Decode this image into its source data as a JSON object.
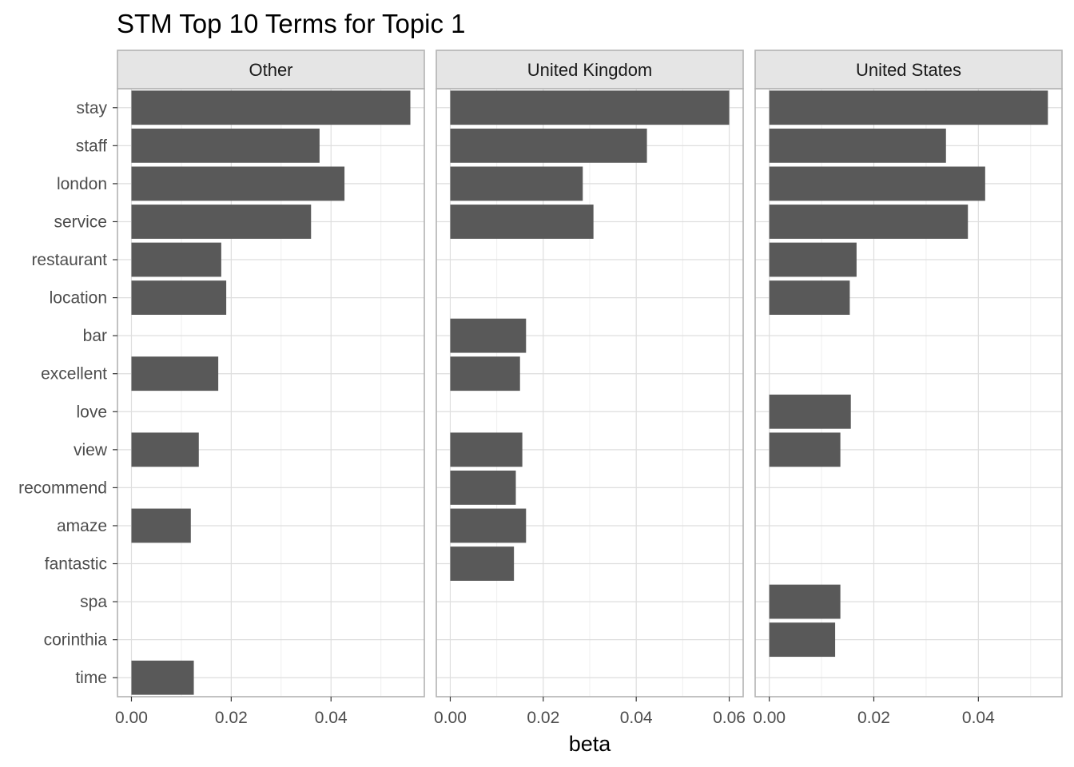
{
  "chart_data": {
    "type": "bar",
    "orientation": "horizontal",
    "title": "STM Top 10 Terms for Topic 1",
    "xlabel": "beta",
    "ylabel": "",
    "categories": [
      "stay",
      "staff",
      "london",
      "service",
      "restaurant",
      "location",
      "bar",
      "excellent",
      "love",
      "view",
      "recommend",
      "amaze",
      "fantastic",
      "spa",
      "corinthia",
      "time"
    ],
    "xlim": [
      -0.0026,
      0.0625
    ],
    "grid": true,
    "free_x_scales": true,
    "panels": [
      {
        "name": "Other",
        "xlim": [
          -0.0028,
          0.0587
        ],
        "ticks": [
          0.0,
          0.02,
          0.04
        ],
        "tick_labels": [
          "0.00",
          "0.02",
          "0.04"
        ],
        "values": {
          "stay": 0.0559,
          "staff": 0.0377,
          "london": 0.0427,
          "service": 0.036,
          "restaurant": 0.018,
          "location": 0.019,
          "excellent": 0.0174,
          "view": 0.0135,
          "amaze": 0.0119,
          "time": 0.0125
        }
      },
      {
        "name": "United Kingdom",
        "xlim": [
          -0.003,
          0.063
        ],
        "ticks": [
          0.0,
          0.02,
          0.04,
          0.06
        ],
        "tick_labels": [
          "0.00",
          "0.02",
          "0.04",
          "0.06"
        ],
        "values": {
          "stay": 0.06,
          "staff": 0.0423,
          "london": 0.0285,
          "service": 0.0308,
          "bar": 0.0163,
          "excellent": 0.015,
          "view": 0.0155,
          "recommend": 0.0141,
          "amaze": 0.0163,
          "fantastic": 0.0137
        }
      },
      {
        "name": "United States",
        "xlim": [
          -0.0027,
          0.056
        ],
        "ticks": [
          0.0,
          0.02,
          0.04
        ],
        "tick_labels": [
          "0.00",
          "0.02",
          "0.04"
        ],
        "values": {
          "stay": 0.0533,
          "staff": 0.0338,
          "london": 0.0413,
          "service": 0.038,
          "restaurant": 0.0167,
          "location": 0.0154,
          "love": 0.0156,
          "view": 0.0136,
          "spa": 0.0136,
          "corinthia": 0.0126
        }
      }
    ]
  },
  "colors": {
    "bar": "#595959",
    "panel_border": "#b3b3b3",
    "strip_fill": "#e5e5e5",
    "grid_major": "#dedede",
    "grid_minor": "#efefef"
  }
}
